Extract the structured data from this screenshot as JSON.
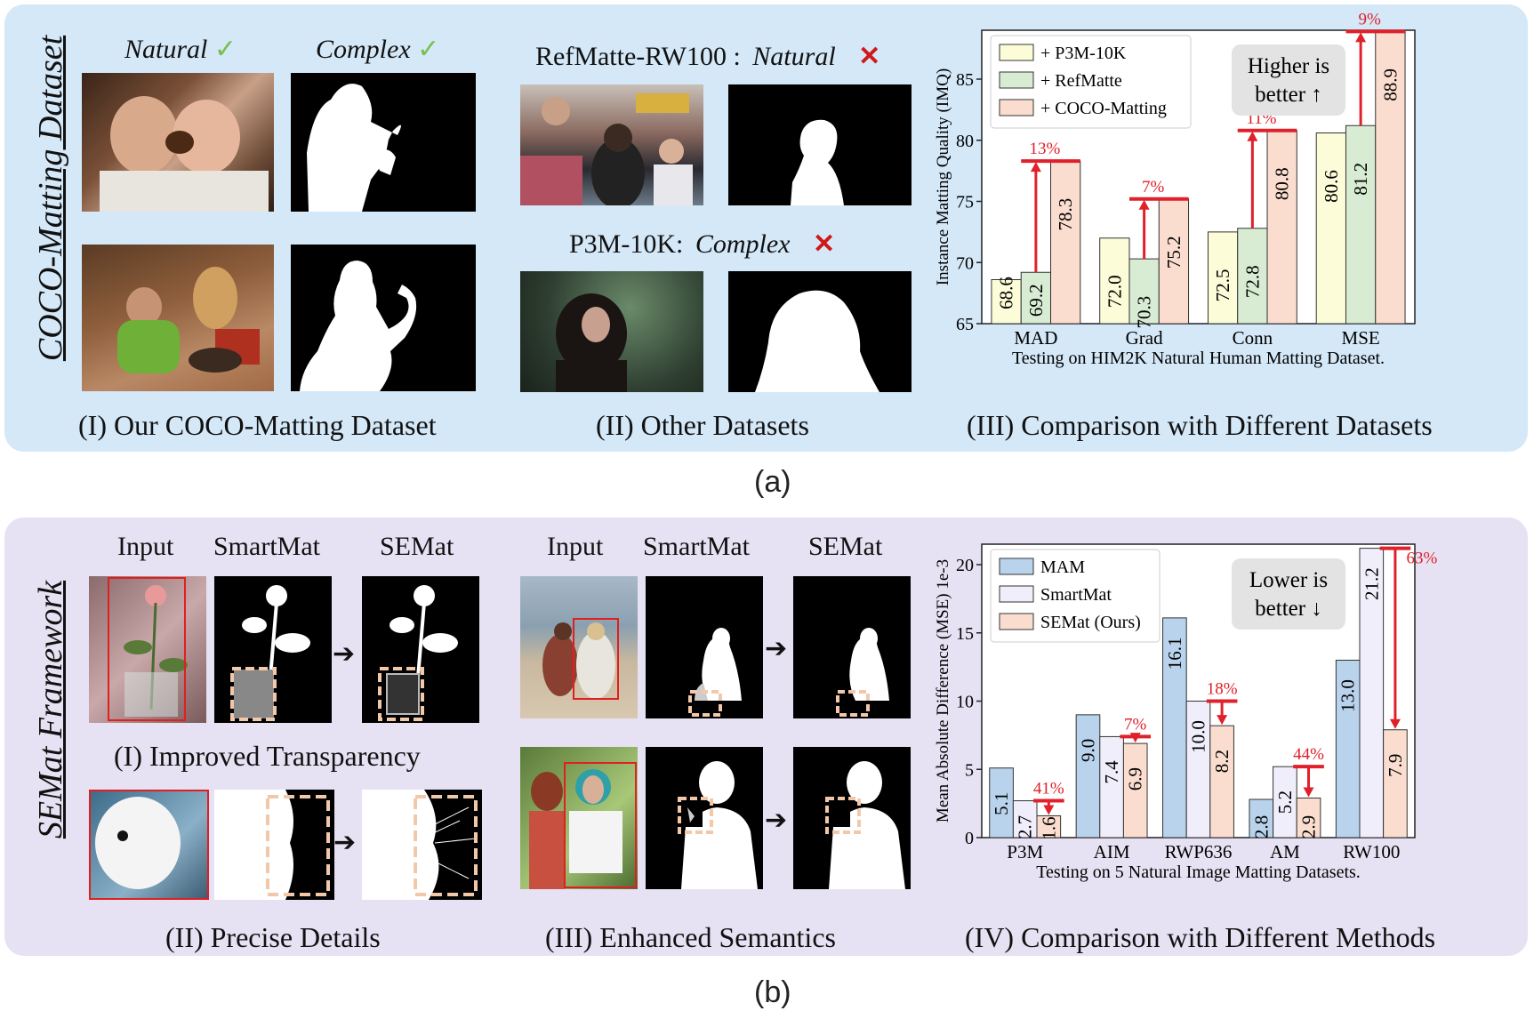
{
  "panel_a": {
    "side_label": "COCO-Matting Dataset",
    "sub_label": "(a)",
    "our_dataset": {
      "header_natural": "Natural",
      "header_complex": "Complex",
      "check_glyph": "✓",
      "caption": "(I) Our COCO-Matting Dataset"
    },
    "other_datasets": {
      "refmatte_name": "RefMatte-RW100 :",
      "refmatte_tag": "Natural",
      "p3m_name": "P3M-10K:",
      "p3m_tag": "Complex",
      "cross_glyph": "✕",
      "caption": "(II) Other Datasets"
    },
    "chart_caption": "(III) Comparison with Different Datasets",
    "note": [
      "Higher is",
      "better ↑"
    ]
  },
  "panel_b": {
    "side_label": "SEMat Framework",
    "sub_label": "(b)",
    "col_headers": [
      "Input",
      "SmartMat",
      "SEMat"
    ],
    "captions": {
      "transparency": "(I) Improved Transparency",
      "details": "(II) Precise Details",
      "semantics": "(III) Enhanced Semantics",
      "methods": "(IV) Comparison with Different Methods"
    },
    "note": [
      "Lower is",
      "better ↓"
    ]
  },
  "colors": {
    "panel_a_bg": "#d4e8f8",
    "panel_b_bg": "#e6e2f3",
    "yellow_bar": "#fcfcd8",
    "green_bar": "#d8ecd4",
    "peach_bar": "#fbddcf",
    "blue_bar": "#b9d3ec",
    "lavender_bar": "#f0eefa",
    "arrow_red": "#e0202a",
    "check_green": "#78c050"
  },
  "chart_data": [
    {
      "type": "bar",
      "ylabel": "Instance Matting Quality (IMQ)",
      "xlabel": "Testing on HIM2K Natural Human Matting Dataset.",
      "categories": [
        "MAD",
        "Grad",
        "Conn",
        "MSE"
      ],
      "series": [
        {
          "name": "+ P3M-10K",
          "values": [
            68.6,
            72.0,
            72.5,
            80.6
          ]
        },
        {
          "name": "+ RefMatte",
          "values": [
            69.2,
            70.3,
            72.8,
            81.2
          ]
        },
        {
          "name": "+ COCO-Matting",
          "values": [
            78.3,
            75.2,
            80.8,
            88.9
          ]
        }
      ],
      "value_labels": [
        [
          "68.6",
          "69.2",
          "78.3"
        ],
        [
          "72.0",
          "70.3",
          "75.2"
        ],
        [
          "72.5",
          "72.8",
          "80.8"
        ],
        [
          "80.6",
          "81.2",
          "88.9"
        ]
      ],
      "improvements": [
        "13%",
        "7%",
        "11%",
        "9%"
      ],
      "ylim": [
        65,
        89
      ],
      "yticks": [
        "65",
        "70",
        "75",
        "80",
        "85"
      ],
      "legend": "top-left"
    },
    {
      "type": "bar",
      "ylabel": "Mean Absolute Difference (MSE) 1e-3",
      "xlabel": "Testing on 5 Natural Image Matting Datasets.",
      "categories": [
        "P3M",
        "AIM",
        "RWP636",
        "AM",
        "RW100"
      ],
      "series": [
        {
          "name": "MAM",
          "values": [
            5.1,
            9.0,
            16.1,
            2.8,
            13.0
          ]
        },
        {
          "name": "SmartMat",
          "values": [
            2.7,
            7.4,
            10.0,
            5.2,
            21.2
          ]
        },
        {
          "name": "SEMat (Ours)",
          "values": [
            1.6,
            6.9,
            8.2,
            2.9,
            7.9
          ]
        }
      ],
      "value_labels": [
        [
          "5.1",
          "2.7",
          "1.6"
        ],
        [
          "9.0",
          "7.4",
          "6.9"
        ],
        [
          "16.1",
          "10.0",
          "8.2"
        ],
        [
          "2.8",
          "5.2",
          "2.9"
        ],
        [
          "13.0",
          "21.2",
          "7.9"
        ]
      ],
      "improvements": [
        "41%",
        "7%",
        "18%",
        "44%",
        "63%"
      ],
      "ylim": [
        0,
        21.5
      ],
      "yticks": [
        "0",
        "5",
        "10",
        "15",
        "20"
      ],
      "legend": "top-left"
    }
  ]
}
